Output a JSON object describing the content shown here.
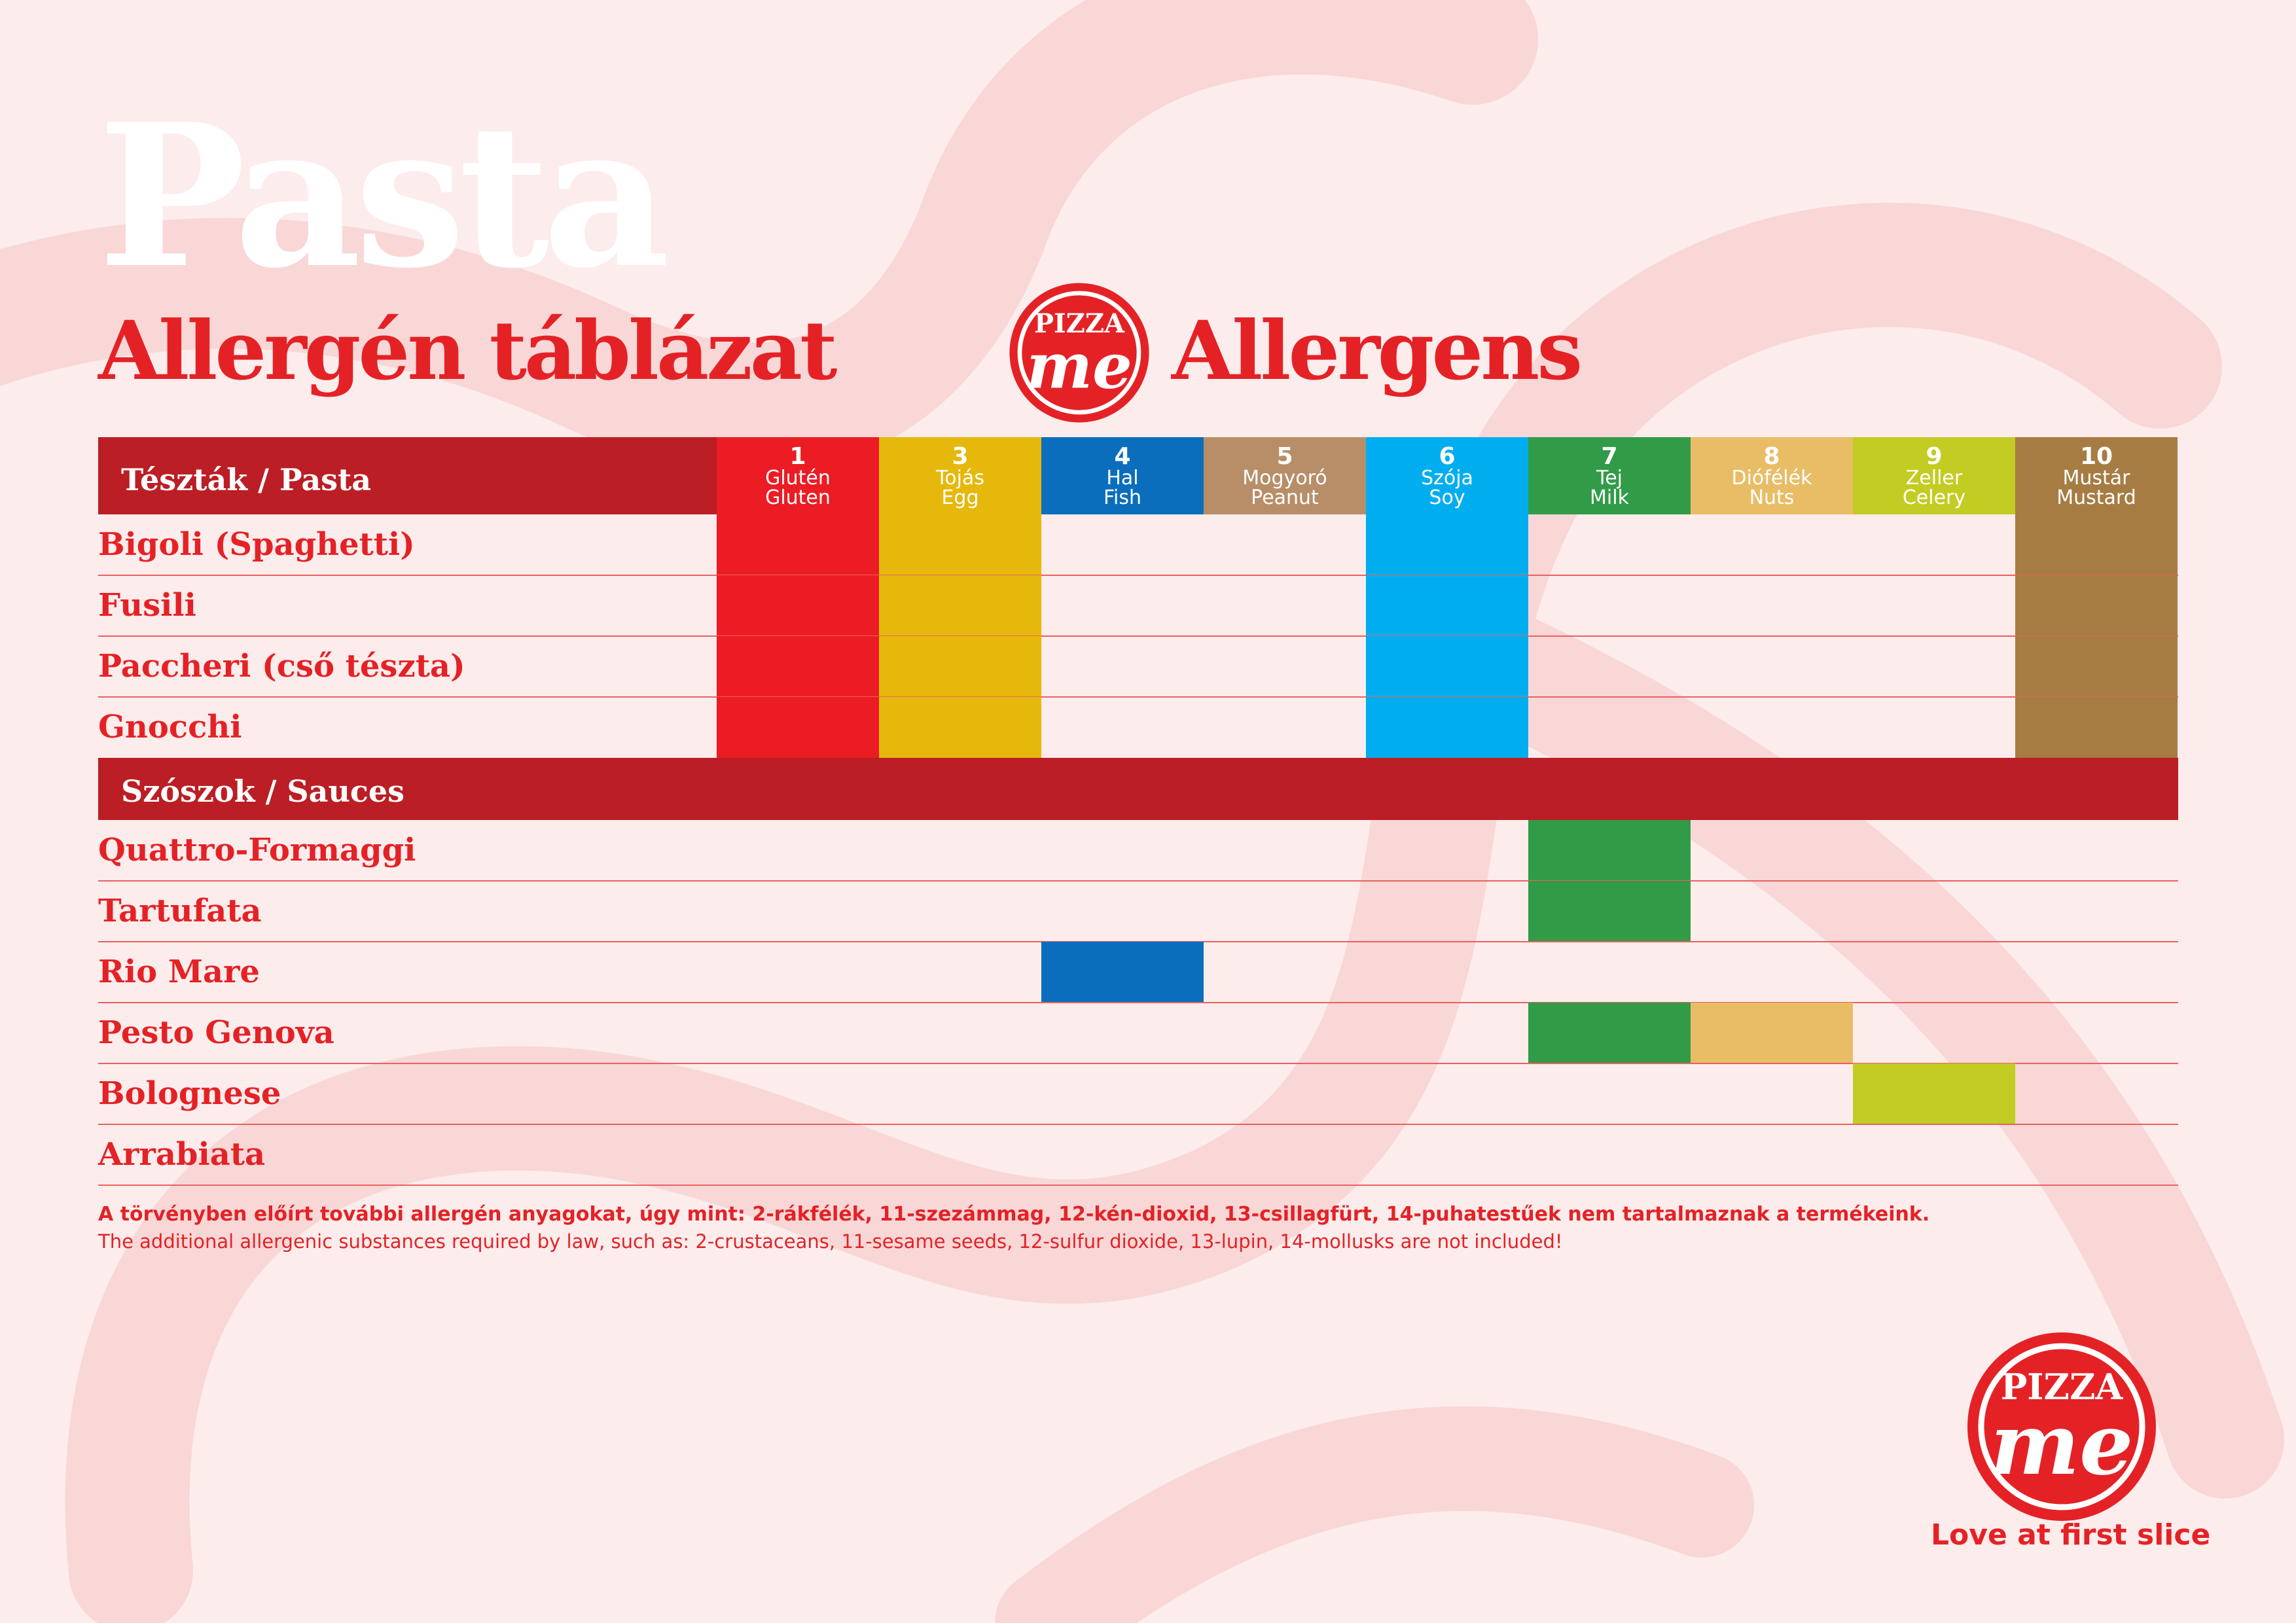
{
  "title": "Pasta",
  "subtitle_hu": "Allergén táblázat",
  "subtitle_en": "Allergens",
  "brand": {
    "logo_text": "PIZZA",
    "logo_script": "me",
    "tagline": "Love at first slice",
    "color": "#e42226"
  },
  "allergens": [
    {
      "num": "1",
      "hu": "Glutén",
      "en": "Gluten",
      "color": "#ec1c24"
    },
    {
      "num": "3",
      "hu": "Tojás",
      "en": "Egg",
      "color": "#e5b80b"
    },
    {
      "num": "4",
      "hu": "Hal",
      "en": "Fish",
      "color": "#0a6ebd"
    },
    {
      "num": "5",
      "hu": "Mogyoró",
      "en": "Peanut",
      "color": "#b78e68"
    },
    {
      "num": "6",
      "hu": "Szója",
      "en": "Soy",
      "color": "#00aeef"
    },
    {
      "num": "7",
      "hu": "Tej",
      "en": "Milk",
      "color": "#319b47"
    },
    {
      "num": "8",
      "hu": "Diófélék",
      "en": "Nuts",
      "color": "#e8bd66"
    },
    {
      "num": "9",
      "hu": "Zeller",
      "en": "Celery",
      "color": "#c3cc22"
    },
    {
      "num": "10",
      "hu": "Mustár",
      "en": "Mustard",
      "color": "#a67c43"
    }
  ],
  "sections": [
    {
      "label": "Tészták / Pasta",
      "rows": [
        {
          "name": "Bigoli (Spaghetti)",
          "allergens": [
            "1",
            "3",
            "6",
            "10"
          ]
        },
        {
          "name": "Fusili",
          "allergens": [
            "1",
            "3",
            "6",
            "10"
          ]
        },
        {
          "name": "Paccheri (cső tészta)",
          "allergens": [
            "1",
            "3",
            "6",
            "10"
          ]
        },
        {
          "name": "Gnocchi",
          "allergens": [
            "1",
            "3",
            "6",
            "10"
          ]
        }
      ]
    },
    {
      "label": "Szószok / Sauces",
      "rows": [
        {
          "name": "Quattro-Formaggi",
          "allergens": [
            "7"
          ]
        },
        {
          "name": "Tartufata",
          "allergens": [
            "7"
          ]
        },
        {
          "name": "Rio Mare",
          "allergens": [
            "4"
          ]
        },
        {
          "name": "Pesto Genova",
          "allergens": [
            "7",
            "8"
          ]
        },
        {
          "name": "Bolognese",
          "allergens": [
            "9"
          ]
        },
        {
          "name": "Arrabiata",
          "allergens": []
        }
      ]
    }
  ],
  "note_hu": "A törvényben előírt további allergén anyagokat, úgy mint: 2-rákfélék, 11-szezámmag, 12-kén-dioxid, 13-csillagfürt, 14-puhatestűek nem tartalmaznak a termékeink.",
  "note_en": "The additional allergenic substances required by law, such as: 2-crustaceans, 11-sesame seeds, 12-sulfur dioxide, 13-lupin, 14-mollusks are not included!",
  "colors": {
    "background": "#fdecec",
    "header_bar": "#bb1e24",
    "row_text": "#e42226",
    "row_divider": "#e8625f"
  }
}
